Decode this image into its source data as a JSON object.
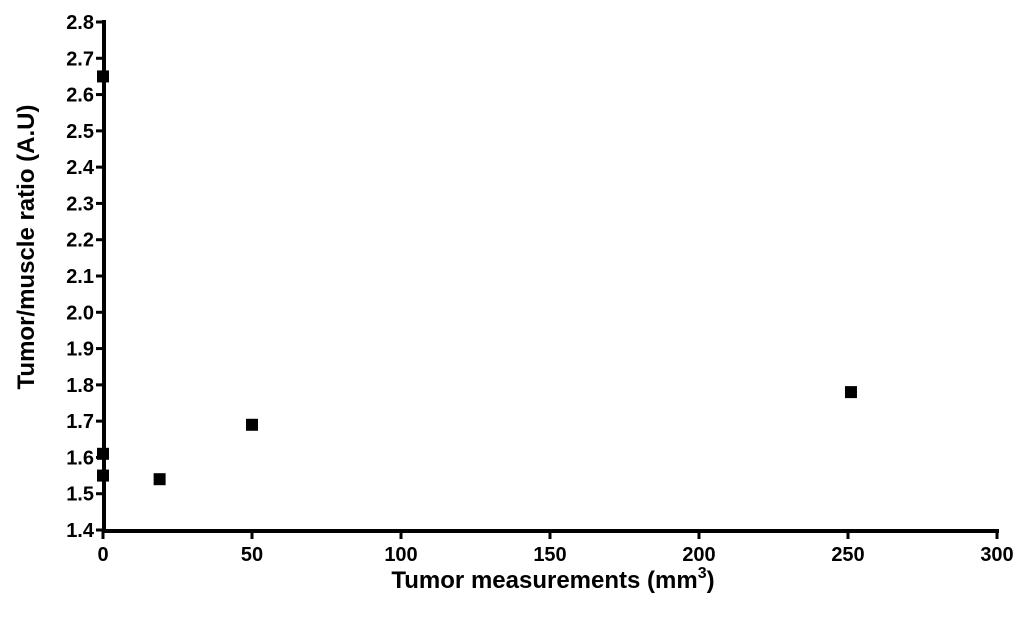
{
  "chart_data": {
    "type": "scatter",
    "title": "",
    "xlabel": "Tumor measurements (mm",
    "xlabel_sup": "3",
    "xlabel_suffix": ")",
    "ylabel": "Tumor/muscle ratio (A.U)",
    "xlim": [
      0,
      300
    ],
    "ylim": [
      1.4,
      2.8
    ],
    "x_ticks": [
      "0",
      "50",
      "100",
      "150",
      "200",
      "250",
      "300"
    ],
    "y_ticks": [
      "1.4",
      "1.5",
      "1.6",
      "1.7",
      "1.8",
      "1.9",
      "2.0",
      "2.1",
      "2.2",
      "2.3",
      "2.4",
      "2.5",
      "2.6",
      "2.7",
      "2.8"
    ],
    "grid": false,
    "legend": "none",
    "marker": "square",
    "marker_color": "#000000",
    "points": [
      {
        "x": 0,
        "y": 2.65
      },
      {
        "x": 0,
        "y": 1.61
      },
      {
        "x": 0,
        "y": 1.55
      },
      {
        "x": 19,
        "y": 1.54
      },
      {
        "x": 50,
        "y": 1.69
      },
      {
        "x": 251,
        "y": 1.78
      }
    ]
  }
}
